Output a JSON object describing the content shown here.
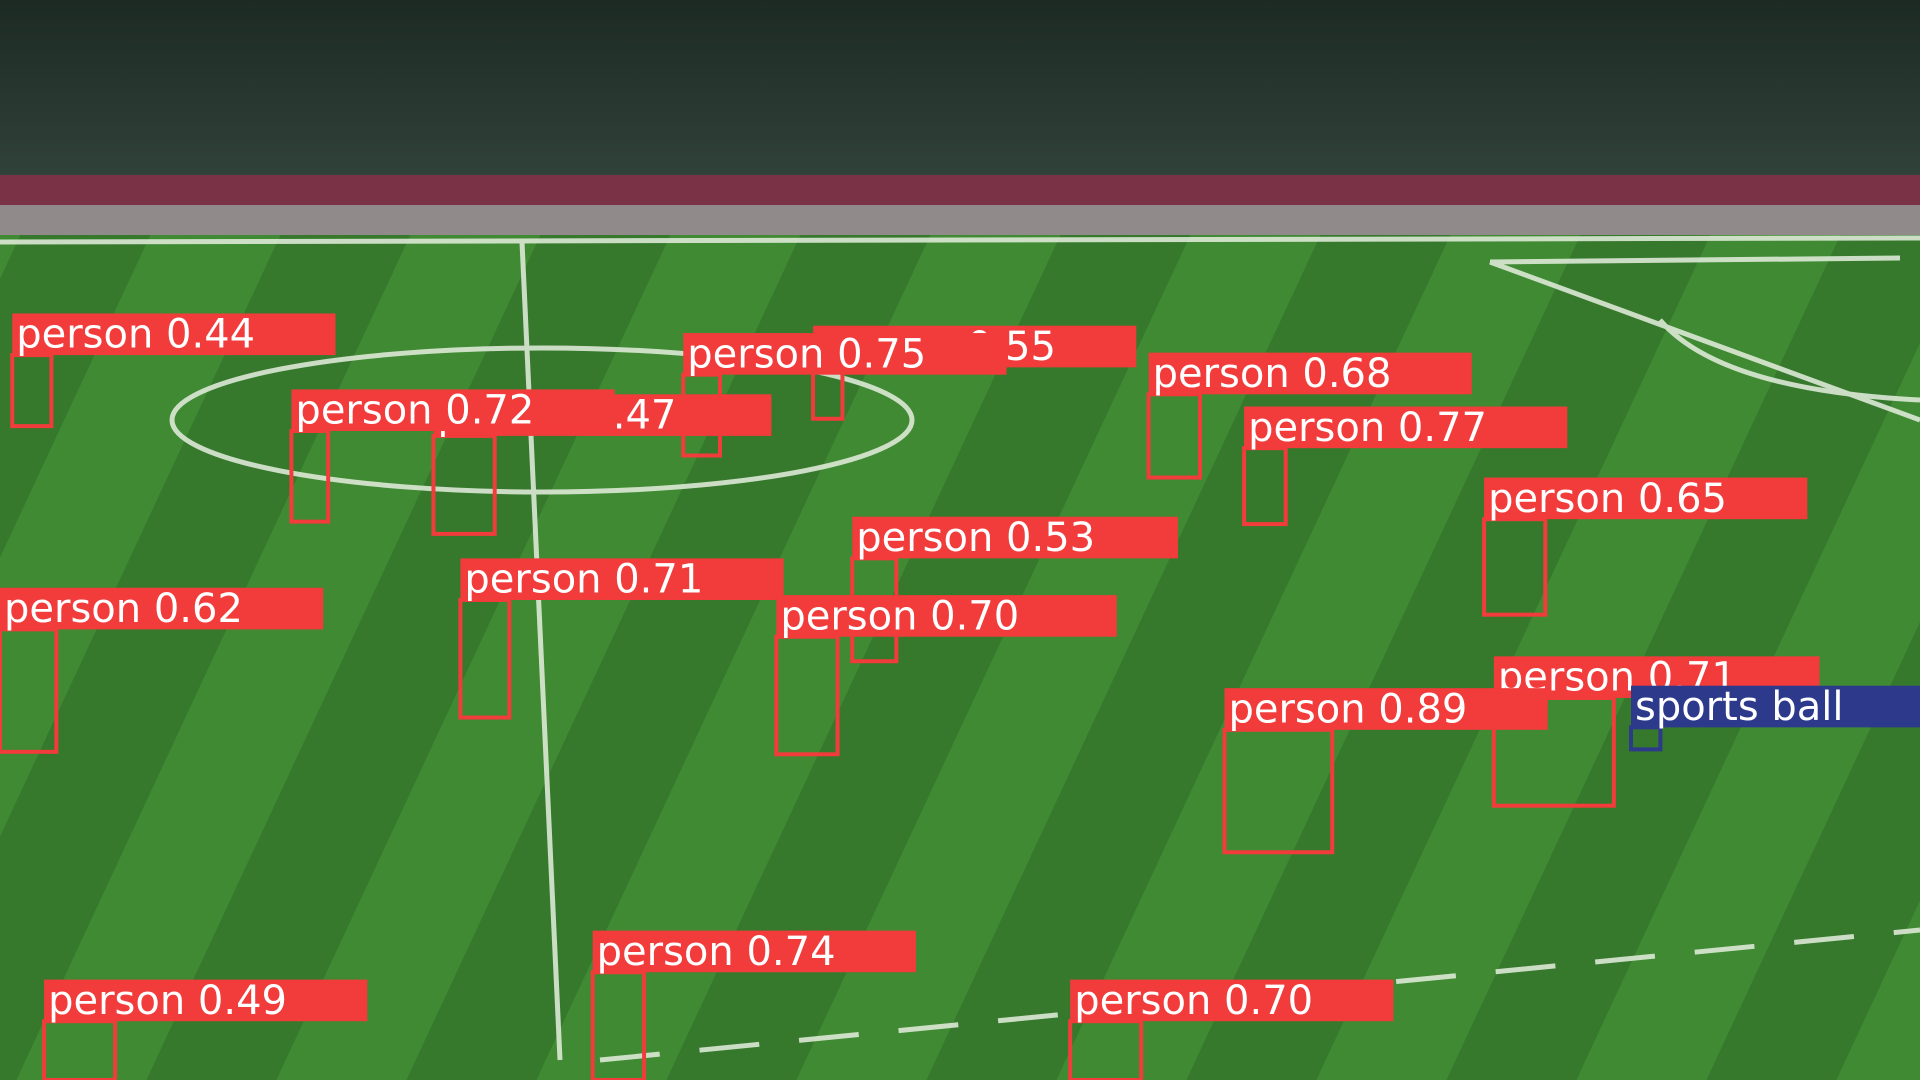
{
  "detections": [
    "person 0.44",
    "person 0.55",
    "person 0.75",
    "person 0.47",
    "person 0.72",
    "person 0.68",
    "person 0.77",
    "person 0.65",
    "person 0.53",
    "person 0.71",
    "person 0.62",
    "person 0.70",
    "person 0.71",
    "person 0.89",
    "sports ball",
    "person 0.74",
    "person 0.49",
    "person 0.70"
  ]
}
